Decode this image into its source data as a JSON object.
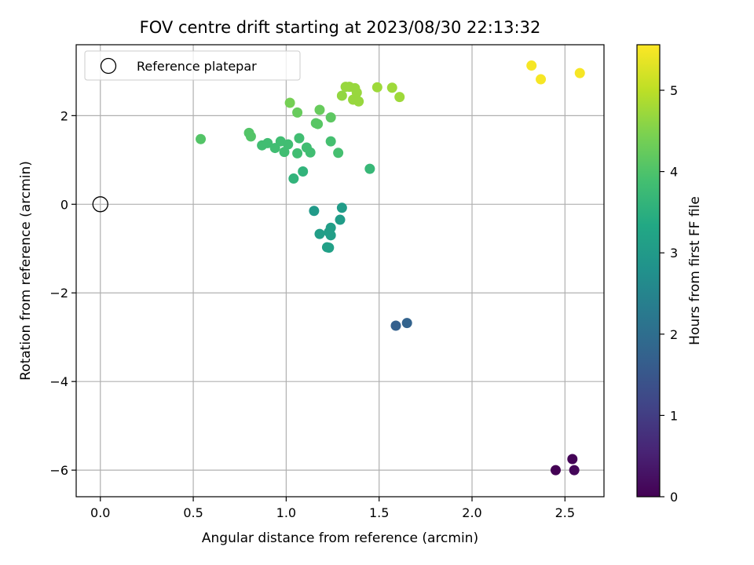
{
  "chart_data": {
    "type": "scatter",
    "title": "FOV centre drift starting at 2023/08/30 22:13:32",
    "xlabel": "Angular distance from reference (arcmin)",
    "ylabel": "Rotation from reference (arcmin)",
    "xlim": [
      -0.13,
      2.71
    ],
    "ylim": [
      -6.6,
      3.6
    ],
    "xticks": [
      "0.0",
      "0.5",
      "1.0",
      "1.5",
      "2.0",
      "2.5"
    ],
    "xtick_values": [
      0.0,
      0.5,
      1.0,
      1.5,
      2.0,
      2.5
    ],
    "yticks": [
      "−6",
      "−4",
      "−2",
      "0",
      "2"
    ],
    "ytick_values": [
      -6,
      -4,
      -2,
      0,
      2
    ],
    "grid": true,
    "legend": {
      "position": "top-left",
      "entries": [
        {
          "label": "Reference platepar",
          "marker": "open-circle",
          "x": 0.0,
          "y": 0.0
        }
      ]
    },
    "colorbar": {
      "label": "Hours from first FF file",
      "colormap": "viridis",
      "range": [
        0,
        5.56
      ],
      "ticks": [
        "0",
        "1",
        "2",
        "3",
        "4",
        "5"
      ],
      "tick_values": [
        0,
        1,
        2,
        3,
        4,
        5
      ]
    },
    "points": [
      {
        "x": 2.45,
        "y": -6.0,
        "hours": 0.0
      },
      {
        "x": 2.54,
        "y": -5.75,
        "hours": 0.05
      },
      {
        "x": 2.55,
        "y": -6.0,
        "hours": 0.1
      },
      {
        "x": 1.59,
        "y": -2.74,
        "hours": 1.7
      },
      {
        "x": 1.65,
        "y": -2.68,
        "hours": 1.75
      },
      {
        "x": 1.15,
        "y": -0.15,
        "hours": 3.0
      },
      {
        "x": 1.3,
        "y": -0.08,
        "hours": 3.05
      },
      {
        "x": 1.29,
        "y": -0.35,
        "hours": 3.05
      },
      {
        "x": 1.18,
        "y": -0.67,
        "hours": 3.1
      },
      {
        "x": 1.24,
        "y": -0.53,
        "hours": 3.1
      },
      {
        "x": 1.23,
        "y": -0.63,
        "hours": 3.1
      },
      {
        "x": 1.24,
        "y": -0.7,
        "hours": 3.1
      },
      {
        "x": 1.22,
        "y": -0.97,
        "hours": 3.15
      },
      {
        "x": 1.23,
        "y": -0.98,
        "hours": 3.15
      },
      {
        "x": 1.04,
        "y": 0.58,
        "hours": 3.6
      },
      {
        "x": 1.09,
        "y": 0.74,
        "hours": 3.6
      },
      {
        "x": 1.45,
        "y": 0.8,
        "hours": 3.7
      },
      {
        "x": 0.87,
        "y": 1.33,
        "hours": 3.85
      },
      {
        "x": 0.9,
        "y": 1.38,
        "hours": 3.85
      },
      {
        "x": 0.94,
        "y": 1.27,
        "hours": 3.85
      },
      {
        "x": 0.97,
        "y": 1.42,
        "hours": 3.85
      },
      {
        "x": 0.99,
        "y": 1.18,
        "hours": 3.85
      },
      {
        "x": 1.01,
        "y": 1.35,
        "hours": 3.85
      },
      {
        "x": 1.06,
        "y": 1.15,
        "hours": 3.85
      },
      {
        "x": 1.07,
        "y": 1.49,
        "hours": 3.85
      },
      {
        "x": 1.11,
        "y": 1.28,
        "hours": 3.85
      },
      {
        "x": 1.13,
        "y": 1.17,
        "hours": 3.85
      },
      {
        "x": 1.24,
        "y": 1.42,
        "hours": 3.9
      },
      {
        "x": 1.28,
        "y": 1.16,
        "hours": 3.9
      },
      {
        "x": 0.54,
        "y": 1.47,
        "hours": 4.05
      },
      {
        "x": 0.8,
        "y": 1.61,
        "hours": 4.05
      },
      {
        "x": 0.81,
        "y": 1.53,
        "hours": 4.05
      },
      {
        "x": 1.16,
        "y": 1.83,
        "hours": 4.1
      },
      {
        "x": 1.17,
        "y": 1.81,
        "hours": 4.1
      },
      {
        "x": 1.24,
        "y": 1.96,
        "hours": 4.15
      },
      {
        "x": 1.06,
        "y": 2.07,
        "hours": 4.25
      },
      {
        "x": 1.18,
        "y": 2.13,
        "hours": 4.25
      },
      {
        "x": 1.02,
        "y": 2.29,
        "hours": 4.4
      },
      {
        "x": 1.3,
        "y": 2.45,
        "hours": 4.65
      },
      {
        "x": 1.32,
        "y": 2.65,
        "hours": 4.7
      },
      {
        "x": 1.34,
        "y": 2.65,
        "hours": 4.7
      },
      {
        "x": 1.36,
        "y": 2.36,
        "hours": 4.7
      },
      {
        "x": 1.37,
        "y": 2.62,
        "hours": 4.7
      },
      {
        "x": 1.38,
        "y": 2.52,
        "hours": 4.7
      },
      {
        "x": 1.39,
        "y": 2.32,
        "hours": 4.7
      },
      {
        "x": 1.49,
        "y": 2.64,
        "hours": 4.75
      },
      {
        "x": 1.57,
        "y": 2.63,
        "hours": 4.75
      },
      {
        "x": 1.61,
        "y": 2.42,
        "hours": 4.75
      },
      {
        "x": 2.32,
        "y": 3.13,
        "hours": 5.5
      },
      {
        "x": 2.37,
        "y": 2.82,
        "hours": 5.5
      },
      {
        "x": 2.58,
        "y": 2.96,
        "hours": 5.5
      }
    ]
  }
}
